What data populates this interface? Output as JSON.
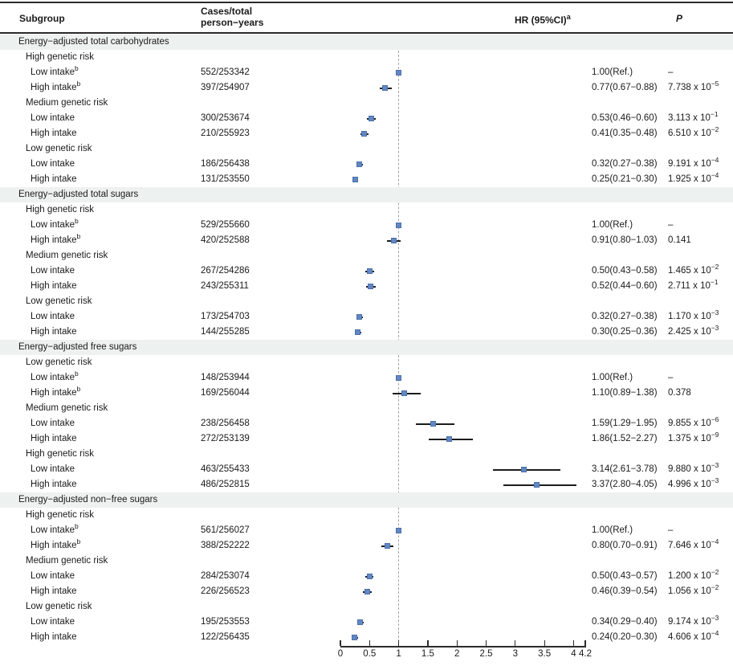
{
  "figure": {
    "columns": {
      "subgroup": "Subgroup",
      "cases_line1": "Cases/total",
      "cases_line2": "person−years",
      "hr": "HR (95%CI)",
      "hr_sup": "a",
      "p": "P"
    }
  },
  "chart_data": {
    "type": "forest",
    "x_axis": {
      "tick_values": [
        0,
        0.5,
        1,
        1.5,
        2,
        2.5,
        3,
        3.5,
        4,
        4.2
      ],
      "tick_labels": [
        "0",
        "0.5",
        "1",
        "1.5",
        "2",
        "2.5",
        "3",
        "3.5",
        "4",
        "4.2"
      ],
      "range": [
        0,
        4.2
      ],
      "ref_line": 1
    },
    "colors": {
      "marker": "#6287c4",
      "marker_border": "#4d71a9",
      "ci_line": "#1c1c1c",
      "ref_dash": "#a3a3a3",
      "section_band": "#edf1ef"
    },
    "sections": [
      {
        "title": "Energy−adjusted total carbohydrates",
        "groups": [
          {
            "title": "High genetic risk",
            "rows": [
              {
                "label": "Low intake",
                "label_sup": "b",
                "cases": "552/253342",
                "hr": 1.0,
                "ci": null,
                "hr_text": "1.00(Ref.)",
                "p_text": "–",
                "p_sup": ""
              },
              {
                "label": "High intake",
                "label_sup": "b",
                "cases": "397/254907",
                "hr": 0.77,
                "ci": [
                  0.67,
                  0.88
                ],
                "hr_text": "0.77(0.67−0.88)",
                "p_text": "7.738 x 10",
                "p_sup": "−5"
              }
            ]
          },
          {
            "title": "Medium genetic risk",
            "rows": [
              {
                "label": "Low intake",
                "label_sup": "",
                "cases": "300/253674",
                "hr": 0.53,
                "ci": [
                  0.46,
                  0.6
                ],
                "hr_text": "0.53(0.46−0.60)",
                "p_text": "3.113 x 10",
                "p_sup": "−1"
              },
              {
                "label": "High intake",
                "label_sup": "",
                "cases": "210/255923",
                "hr": 0.41,
                "ci": [
                  0.35,
                  0.48
                ],
                "hr_text": "0.41(0.35−0.48)",
                "p_text": "6.510 x 10",
                "p_sup": "−2"
              }
            ]
          },
          {
            "title": "Low genetic risk",
            "rows": [
              {
                "label": "Low intake",
                "label_sup": "",
                "cases": "186/256438",
                "hr": 0.32,
                "ci": [
                  0.27,
                  0.38
                ],
                "hr_text": "0.32(0.27−0.38)",
                "p_text": "9.191 x 10",
                "p_sup": "−4"
              },
              {
                "label": "High intake",
                "label_sup": "",
                "cases": "131/253550",
                "hr": 0.25,
                "ci": [
                  0.21,
                  0.3
                ],
                "hr_text": "0.25(0.21−0.30)",
                "p_text": "1.925 x 10",
                "p_sup": "−4"
              }
            ]
          }
        ]
      },
      {
        "title": "Energy−adjusted total sugars",
        "groups": [
          {
            "title": "High genetic risk",
            "rows": [
              {
                "label": "Low intake",
                "label_sup": "b",
                "cases": "529/255660",
                "hr": 1.0,
                "ci": null,
                "hr_text": "1.00(Ref.)",
                "p_text": "–",
                "p_sup": ""
              },
              {
                "label": "High intake",
                "label_sup": "b",
                "cases": "420/252588",
                "hr": 0.91,
                "ci": [
                  0.8,
                  1.03
                ],
                "hr_text": "0.91(0.80−1.03)",
                "p_text": "0.141",
                "p_sup": ""
              }
            ]
          },
          {
            "title": "Medium genetic risk",
            "rows": [
              {
                "label": "Low intake",
                "label_sup": "",
                "cases": "267/254286",
                "hr": 0.5,
                "ci": [
                  0.43,
                  0.58
                ],
                "hr_text": "0.50(0.43−0.58)",
                "p_text": "1.465 x 10",
                "p_sup": "−2"
              },
              {
                "label": "High intake",
                "label_sup": "",
                "cases": "243/255311",
                "hr": 0.52,
                "ci": [
                  0.44,
                  0.6
                ],
                "hr_text": "0.52(0.44−0.60)",
                "p_text": "2.711 x 10",
                "p_sup": "−1"
              }
            ]
          },
          {
            "title": "Low genetic risk",
            "rows": [
              {
                "label": "Low intake",
                "label_sup": "",
                "cases": "173/254703",
                "hr": 0.32,
                "ci": [
                  0.27,
                  0.38
                ],
                "hr_text": "0.32(0.27−0.38)",
                "p_text": "1.170 x 10",
                "p_sup": "−3"
              },
              {
                "label": "High intake",
                "label_sup": "",
                "cases": "144/255285",
                "hr": 0.3,
                "ci": [
                  0.25,
                  0.36
                ],
                "hr_text": "0.30(0.25−0.36)",
                "p_text": "2.425 x 10",
                "p_sup": "−3"
              }
            ]
          }
        ]
      },
      {
        "title": "Energy−adjusted free sugars",
        "groups": [
          {
            "title": "Low genetic risk",
            "rows": [
              {
                "label": "Low intake",
                "label_sup": "b",
                "cases": "148/253944",
                "hr": 1.0,
                "ci": null,
                "hr_text": "1.00(Ref.)",
                "p_text": "–",
                "p_sup": ""
              },
              {
                "label": "High intake",
                "label_sup": "b",
                "cases": "169/256044",
                "hr": 1.1,
                "ci": [
                  0.89,
                  1.38
                ],
                "hr_text": "1.10(0.89−1.38)",
                "p_text": "0.378",
                "p_sup": ""
              }
            ]
          },
          {
            "title": "Medium genetic risk",
            "rows": [
              {
                "label": "Low intake",
                "label_sup": "",
                "cases": "238/256458",
                "hr": 1.59,
                "ci": [
                  1.29,
                  1.95
                ],
                "hr_text": "1.59(1.29−1.95)",
                "p_text": "9.855 x 10",
                "p_sup": "−6"
              },
              {
                "label": "High intake",
                "label_sup": "",
                "cases": "272/253139",
                "hr": 1.86,
                "ci": [
                  1.52,
                  2.27
                ],
                "hr_text": "1.86(1.52−2.27)",
                "p_text": "1.375 x 10",
                "p_sup": "−9"
              }
            ]
          },
          {
            "title": "High genetic risk",
            "rows": [
              {
                "label": "Low intake",
                "label_sup": "",
                "cases": "463/255433",
                "hr": 3.14,
                "ci": [
                  2.61,
                  3.78
                ],
                "hr_text": "3.14(2.61−3.78)",
                "p_text": "9.880 x 10",
                "p_sup": "−3"
              },
              {
                "label": "High intake",
                "label_sup": "",
                "cases": "486/252815",
                "hr": 3.37,
                "ci": [
                  2.8,
                  4.05
                ],
                "hr_text": "3.37(2.80−4.05)",
                "p_text": "4.996 x 10",
                "p_sup": "−3"
              }
            ]
          }
        ]
      },
      {
        "title": "Energy−adjusted non−free sugars",
        "groups": [
          {
            "title": "High genetic risk",
            "rows": [
              {
                "label": "Low intake",
                "label_sup": "b",
                "cases": "561/256027",
                "hr": 1.0,
                "ci": null,
                "hr_text": "1.00(Ref.)",
                "p_text": "–",
                "p_sup": ""
              },
              {
                "label": "High intake",
                "label_sup": "b",
                "cases": "388/252222",
                "hr": 0.8,
                "ci": [
                  0.7,
                  0.91
                ],
                "hr_text": "0.80(0.70−0.91)",
                "p_text": "7.646 x 10",
                "p_sup": "−4"
              }
            ]
          },
          {
            "title": "Medium genetic risk",
            "rows": [
              {
                "label": "Low intake",
                "label_sup": "",
                "cases": "284/253074",
                "hr": 0.5,
                "ci": [
                  0.43,
                  0.57
                ],
                "hr_text": "0.50(0.43−0.57)",
                "p_text": "1.200 x 10",
                "p_sup": "−2"
              },
              {
                "label": "High intake",
                "label_sup": "",
                "cases": "226/256523",
                "hr": 0.46,
                "ci": [
                  0.39,
                  0.54
                ],
                "hr_text": "0.46(0.39−0.54)",
                "p_text": "1.056 x 10",
                "p_sup": "−2"
              }
            ]
          },
          {
            "title": "Low genetic risk",
            "rows": [
              {
                "label": "Low intake",
                "label_sup": "",
                "cases": "195/253553",
                "hr": 0.34,
                "ci": [
                  0.29,
                  0.4
                ],
                "hr_text": "0.34(0.29−0.40)",
                "p_text": "9.174 x 10",
                "p_sup": "−3"
              },
              {
                "label": "High intake",
                "label_sup": "",
                "cases": "122/256435",
                "hr": 0.24,
                "ci": [
                  0.2,
                  0.3
                ],
                "hr_text": "0.24(0.20−0.30)",
                "p_text": "4.606 x 10",
                "p_sup": "−4"
              }
            ]
          }
        ]
      }
    ]
  }
}
